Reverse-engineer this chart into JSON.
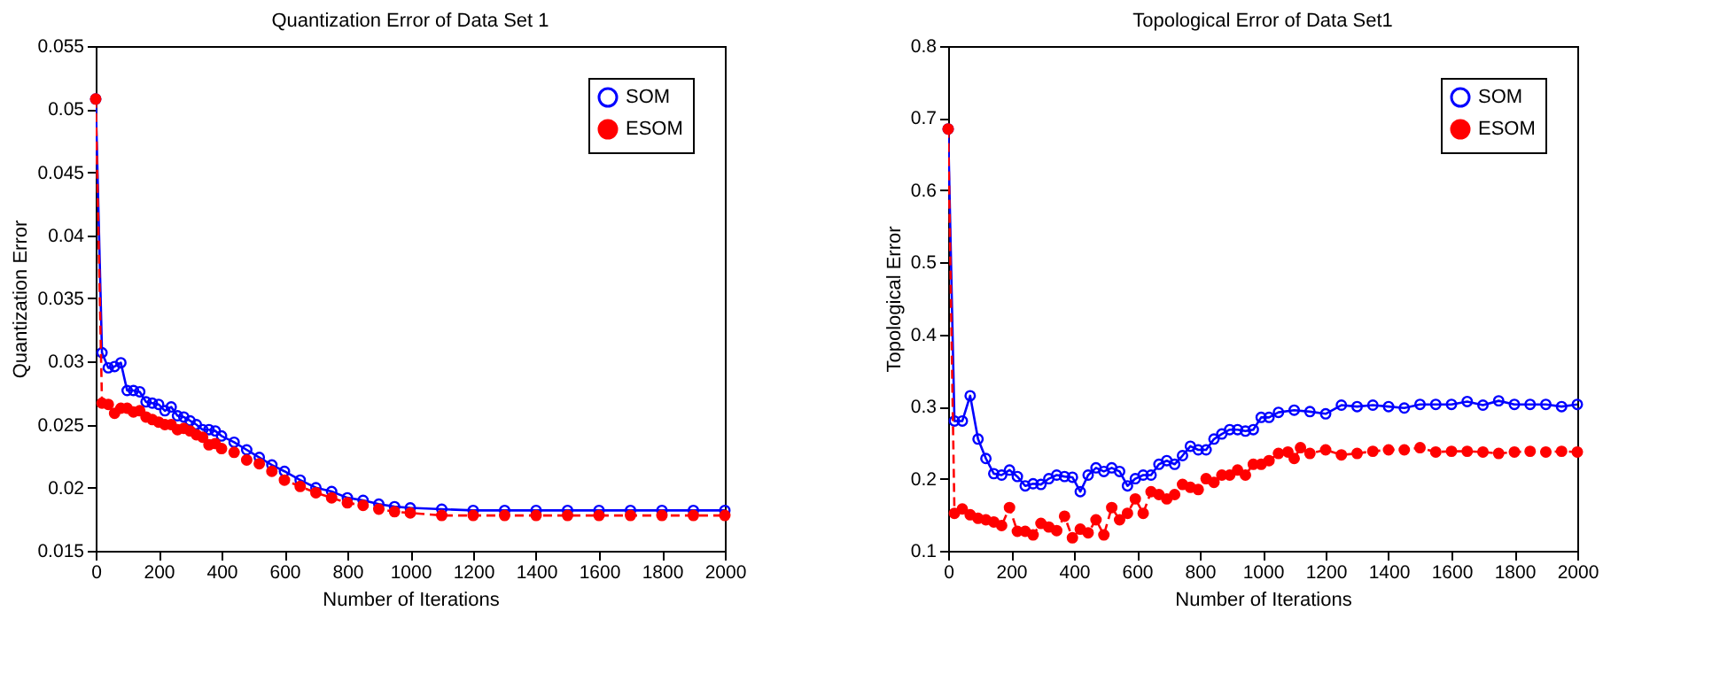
{
  "chart_data": [
    {
      "type": "line",
      "title": "Quantization Error of Data Set 1",
      "xlabel": "Number of Iterations",
      "ylabel": "Quantization Error",
      "xlim": [
        0,
        2000
      ],
      "xticks": [
        0,
        200,
        400,
        600,
        800,
        1000,
        1200,
        1400,
        1600,
        1800,
        2000
      ],
      "ylim": [
        0.015,
        0.055
      ],
      "yticks": [
        0.015,
        0.02,
        0.025,
        0.03,
        0.035,
        0.04,
        0.045,
        0.05,
        0.055
      ],
      "legend": "top right",
      "grid": false,
      "series": [
        {
          "name": "SOM",
          "color": "#0000ff",
          "marker": "circle",
          "line_style": "solid",
          "x": [
            0,
            20,
            40,
            60,
            80,
            100,
            120,
            140,
            160,
            180,
            200,
            220,
            240,
            260,
            280,
            300,
            320,
            340,
            360,
            380,
            400,
            440,
            480,
            520,
            560,
            600,
            650,
            700,
            750,
            800,
            850,
            900,
            950,
            1000,
            1100,
            1200,
            1300,
            1400,
            1500,
            1600,
            1700,
            1800,
            1900,
            2000
          ],
          "values": [
            0.0508,
            0.0307,
            0.0295,
            0.0296,
            0.0299,
            0.0277,
            0.0277,
            0.0276,
            0.0268,
            0.0267,
            0.0266,
            0.0261,
            0.0264,
            0.0257,
            0.0256,
            0.0253,
            0.025,
            0.0246,
            0.0246,
            0.0245,
            0.0241,
            0.0236,
            0.023,
            0.0224,
            0.0218,
            0.0213,
            0.0206,
            0.02,
            0.0197,
            0.0192,
            0.019,
            0.0187,
            0.0185,
            0.0184,
            0.0183,
            0.0182,
            0.0182,
            0.0182,
            0.0182,
            0.0182,
            0.0182,
            0.0182,
            0.0182,
            0.0182
          ]
        },
        {
          "name": "ESOM",
          "color": "#ff0000",
          "marker": "circle",
          "line_style": "dashed",
          "x": [
            0,
            20,
            40,
            60,
            80,
            100,
            120,
            140,
            160,
            180,
            200,
            220,
            240,
            260,
            280,
            300,
            320,
            340,
            360,
            380,
            400,
            440,
            480,
            520,
            560,
            600,
            650,
            700,
            750,
            800,
            850,
            900,
            950,
            1000,
            1100,
            1200,
            1300,
            1400,
            1500,
            1600,
            1700,
            1800,
            1900,
            2000
          ],
          "values": [
            0.0508,
            0.0267,
            0.0266,
            0.0259,
            0.0263,
            0.0263,
            0.026,
            0.0261,
            0.0256,
            0.0254,
            0.0252,
            0.025,
            0.025,
            0.0246,
            0.0247,
            0.0245,
            0.0242,
            0.024,
            0.0234,
            0.0235,
            0.0231,
            0.0228,
            0.0222,
            0.0219,
            0.0213,
            0.0206,
            0.0201,
            0.0196,
            0.0192,
            0.0188,
            0.0186,
            0.0183,
            0.0181,
            0.018,
            0.0178,
            0.0178,
            0.0178,
            0.0178,
            0.0178,
            0.0178,
            0.0178,
            0.0178,
            0.0178,
            0.0178
          ]
        }
      ]
    },
    {
      "type": "line",
      "title": "Topological Error of Data Set1",
      "xlabel": "Number of Iterations",
      "ylabel": "Topological Error",
      "xlim": [
        0,
        2000
      ],
      "xticks": [
        0,
        200,
        400,
        600,
        800,
        1000,
        1200,
        1400,
        1600,
        1800,
        2000
      ],
      "ylim": [
        0.1,
        0.8
      ],
      "yticks": [
        0.1,
        0.2,
        0.3,
        0.4,
        0.5,
        0.6,
        0.7,
        0.8
      ],
      "legend": "top right",
      "grid": false,
      "series": [
        {
          "name": "SOM",
          "color": "#0000ff",
          "marker": "circle",
          "line_style": "solid",
          "x": [
            0,
            20,
            45,
            70,
            95,
            120,
            145,
            170,
            195,
            220,
            245,
            270,
            295,
            320,
            345,
            370,
            395,
            420,
            445,
            470,
            495,
            520,
            545,
            570,
            595,
            620,
            645,
            670,
            695,
            720,
            745,
            770,
            795,
            820,
            845,
            870,
            895,
            920,
            945,
            970,
            995,
            1020,
            1050,
            1100,
            1150,
            1200,
            1250,
            1300,
            1350,
            1400,
            1450,
            1500,
            1550,
            1600,
            1650,
            1700,
            1750,
            1800,
            1850,
            1900,
            1950,
            2000
          ],
          "values": [
            0.685,
            0.28,
            0.28,
            0.315,
            0.255,
            0.228,
            0.207,
            0.205,
            0.212,
            0.203,
            0.19,
            0.193,
            0.192,
            0.2,
            0.205,
            0.203,
            0.202,
            0.182,
            0.205,
            0.215,
            0.21,
            0.215,
            0.21,
            0.19,
            0.2,
            0.205,
            0.205,
            0.22,
            0.225,
            0.22,
            0.232,
            0.245,
            0.24,
            0.24,
            0.255,
            0.262,
            0.268,
            0.268,
            0.266,
            0.268,
            0.285,
            0.285,
            0.292,
            0.295,
            0.293,
            0.29,
            0.302,
            0.3,
            0.302,
            0.3,
            0.298,
            0.303,
            0.303,
            0.303,
            0.307,
            0.302,
            0.308,
            0.303,
            0.303,
            0.303,
            0.3,
            0.303
          ]
        },
        {
          "name": "ESOM",
          "color": "#ff0000",
          "marker": "circle",
          "line_style": "dashed",
          "x": [
            0,
            20,
            45,
            70,
            95,
            120,
            145,
            170,
            195,
            220,
            245,
            270,
            295,
            320,
            345,
            370,
            395,
            420,
            445,
            470,
            495,
            520,
            545,
            570,
            595,
            620,
            645,
            670,
            695,
            720,
            745,
            770,
            795,
            820,
            845,
            870,
            895,
            920,
            945,
            970,
            995,
            1020,
            1050,
            1080,
            1100,
            1120,
            1150,
            1200,
            1250,
            1300,
            1350,
            1400,
            1450,
            1500,
            1550,
            1600,
            1650,
            1700,
            1750,
            1800,
            1850,
            1900,
            1950,
            2000
          ],
          "values": [
            0.685,
            0.152,
            0.158,
            0.15,
            0.145,
            0.143,
            0.14,
            0.135,
            0.16,
            0.127,
            0.127,
            0.122,
            0.138,
            0.133,
            0.128,
            0.148,
            0.118,
            0.13,
            0.125,
            0.143,
            0.122,
            0.16,
            0.143,
            0.152,
            0.172,
            0.152,
            0.182,
            0.178,
            0.172,
            0.178,
            0.192,
            0.188,
            0.185,
            0.2,
            0.195,
            0.205,
            0.205,
            0.212,
            0.205,
            0.22,
            0.22,
            0.225,
            0.235,
            0.237,
            0.228,
            0.243,
            0.235,
            0.24,
            0.233,
            0.235,
            0.238,
            0.24,
            0.24,
            0.243,
            0.237,
            0.238,
            0.238,
            0.237,
            0.235,
            0.237,
            0.238,
            0.237,
            0.238,
            0.237
          ]
        }
      ]
    }
  ]
}
